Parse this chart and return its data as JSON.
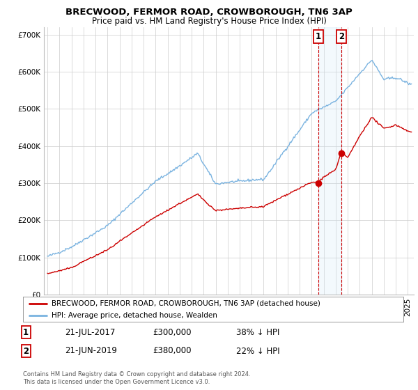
{
  "title": "BRECWOOD, FERMOR ROAD, CROWBOROUGH, TN6 3AP",
  "subtitle": "Price paid vs. HM Land Registry's House Price Index (HPI)",
  "legend_line1": "BRECWOOD, FERMOR ROAD, CROWBOROUGH, TN6 3AP (detached house)",
  "legend_line2": "HPI: Average price, detached house, Wealden",
  "annotation1_label": "1",
  "annotation1_date": "21-JUL-2017",
  "annotation1_price": "£300,000",
  "annotation1_text": "38% ↓ HPI",
  "annotation1_year": 2017.55,
  "annotation1_value": 300000,
  "annotation2_label": "2",
  "annotation2_date": "21-JUN-2019",
  "annotation2_price": "£380,000",
  "annotation2_text": "22% ↓ HPI",
  "annotation2_year": 2019.47,
  "annotation2_value": 380000,
  "hpi_color": "#7ab3e0",
  "price_color": "#cc0000",
  "marker_color": "#cc0000",
  "vline_color": "#cc0000",
  "shade_color": "#d0e8f8",
  "yticks": [
    0,
    100000,
    200000,
    300000,
    400000,
    500000,
    600000,
    700000
  ],
  "ylim_min": 0,
  "ylim_max": 720000,
  "xlim_start": 1994.7,
  "xlim_end": 2025.5,
  "copyright_text": "Contains HM Land Registry data © Crown copyright and database right 2024.\nThis data is licensed under the Open Government Licence v3.0.",
  "background_color": "#ffffff",
  "grid_color": "#cccccc",
  "title_fontsize": 9.5,
  "subtitle_fontsize": 8.5,
  "tick_fontsize": 7.5,
  "legend_fontsize": 7.5
}
